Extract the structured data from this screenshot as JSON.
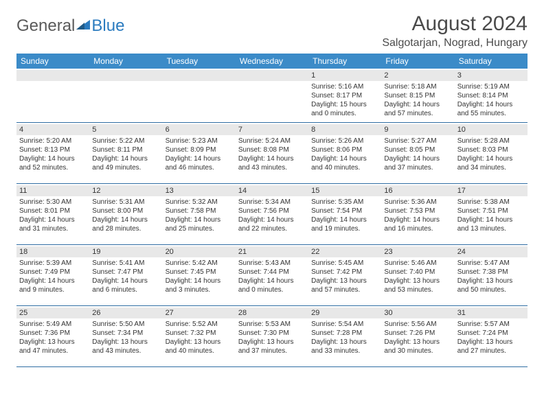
{
  "logo": {
    "text1": "General",
    "text2": "Blue"
  },
  "title": "August 2024",
  "location": "Salgotarjan, Nograd, Hungary",
  "header_bg": "#3b8bc8",
  "dayNames": [
    "Sunday",
    "Monday",
    "Tuesday",
    "Wednesday",
    "Thursday",
    "Friday",
    "Saturday"
  ],
  "weeks": [
    [
      null,
      null,
      null,
      null,
      {
        "n": "1",
        "sr": "5:16 AM",
        "ss": "8:17 PM",
        "dl": "15 hours and 0 minutes."
      },
      {
        "n": "2",
        "sr": "5:18 AM",
        "ss": "8:15 PM",
        "dl": "14 hours and 57 minutes."
      },
      {
        "n": "3",
        "sr": "5:19 AM",
        "ss": "8:14 PM",
        "dl": "14 hours and 55 minutes."
      }
    ],
    [
      {
        "n": "4",
        "sr": "5:20 AM",
        "ss": "8:13 PM",
        "dl": "14 hours and 52 minutes."
      },
      {
        "n": "5",
        "sr": "5:22 AM",
        "ss": "8:11 PM",
        "dl": "14 hours and 49 minutes."
      },
      {
        "n": "6",
        "sr": "5:23 AM",
        "ss": "8:09 PM",
        "dl": "14 hours and 46 minutes."
      },
      {
        "n": "7",
        "sr": "5:24 AM",
        "ss": "8:08 PM",
        "dl": "14 hours and 43 minutes."
      },
      {
        "n": "8",
        "sr": "5:26 AM",
        "ss": "8:06 PM",
        "dl": "14 hours and 40 minutes."
      },
      {
        "n": "9",
        "sr": "5:27 AM",
        "ss": "8:05 PM",
        "dl": "14 hours and 37 minutes."
      },
      {
        "n": "10",
        "sr": "5:28 AM",
        "ss": "8:03 PM",
        "dl": "14 hours and 34 minutes."
      }
    ],
    [
      {
        "n": "11",
        "sr": "5:30 AM",
        "ss": "8:01 PM",
        "dl": "14 hours and 31 minutes."
      },
      {
        "n": "12",
        "sr": "5:31 AM",
        "ss": "8:00 PM",
        "dl": "14 hours and 28 minutes."
      },
      {
        "n": "13",
        "sr": "5:32 AM",
        "ss": "7:58 PM",
        "dl": "14 hours and 25 minutes."
      },
      {
        "n": "14",
        "sr": "5:34 AM",
        "ss": "7:56 PM",
        "dl": "14 hours and 22 minutes."
      },
      {
        "n": "15",
        "sr": "5:35 AM",
        "ss": "7:54 PM",
        "dl": "14 hours and 19 minutes."
      },
      {
        "n": "16",
        "sr": "5:36 AM",
        "ss": "7:53 PM",
        "dl": "14 hours and 16 minutes."
      },
      {
        "n": "17",
        "sr": "5:38 AM",
        "ss": "7:51 PM",
        "dl": "14 hours and 13 minutes."
      }
    ],
    [
      {
        "n": "18",
        "sr": "5:39 AM",
        "ss": "7:49 PM",
        "dl": "14 hours and 9 minutes."
      },
      {
        "n": "19",
        "sr": "5:41 AM",
        "ss": "7:47 PM",
        "dl": "14 hours and 6 minutes."
      },
      {
        "n": "20",
        "sr": "5:42 AM",
        "ss": "7:45 PM",
        "dl": "14 hours and 3 minutes."
      },
      {
        "n": "21",
        "sr": "5:43 AM",
        "ss": "7:44 PM",
        "dl": "14 hours and 0 minutes."
      },
      {
        "n": "22",
        "sr": "5:45 AM",
        "ss": "7:42 PM",
        "dl": "13 hours and 57 minutes."
      },
      {
        "n": "23",
        "sr": "5:46 AM",
        "ss": "7:40 PM",
        "dl": "13 hours and 53 minutes."
      },
      {
        "n": "24",
        "sr": "5:47 AM",
        "ss": "7:38 PM",
        "dl": "13 hours and 50 minutes."
      }
    ],
    [
      {
        "n": "25",
        "sr": "5:49 AM",
        "ss": "7:36 PM",
        "dl": "13 hours and 47 minutes."
      },
      {
        "n": "26",
        "sr": "5:50 AM",
        "ss": "7:34 PM",
        "dl": "13 hours and 43 minutes."
      },
      {
        "n": "27",
        "sr": "5:52 AM",
        "ss": "7:32 PM",
        "dl": "13 hours and 40 minutes."
      },
      {
        "n": "28",
        "sr": "5:53 AM",
        "ss": "7:30 PM",
        "dl": "13 hours and 37 minutes."
      },
      {
        "n": "29",
        "sr": "5:54 AM",
        "ss": "7:28 PM",
        "dl": "13 hours and 33 minutes."
      },
      {
        "n": "30",
        "sr": "5:56 AM",
        "ss": "7:26 PM",
        "dl": "13 hours and 30 minutes."
      },
      {
        "n": "31",
        "sr": "5:57 AM",
        "ss": "7:24 PM",
        "dl": "13 hours and 27 minutes."
      }
    ]
  ],
  "labels": {
    "sunrise": "Sunrise: ",
    "sunset": "Sunset: ",
    "daylight": "Daylight: "
  }
}
